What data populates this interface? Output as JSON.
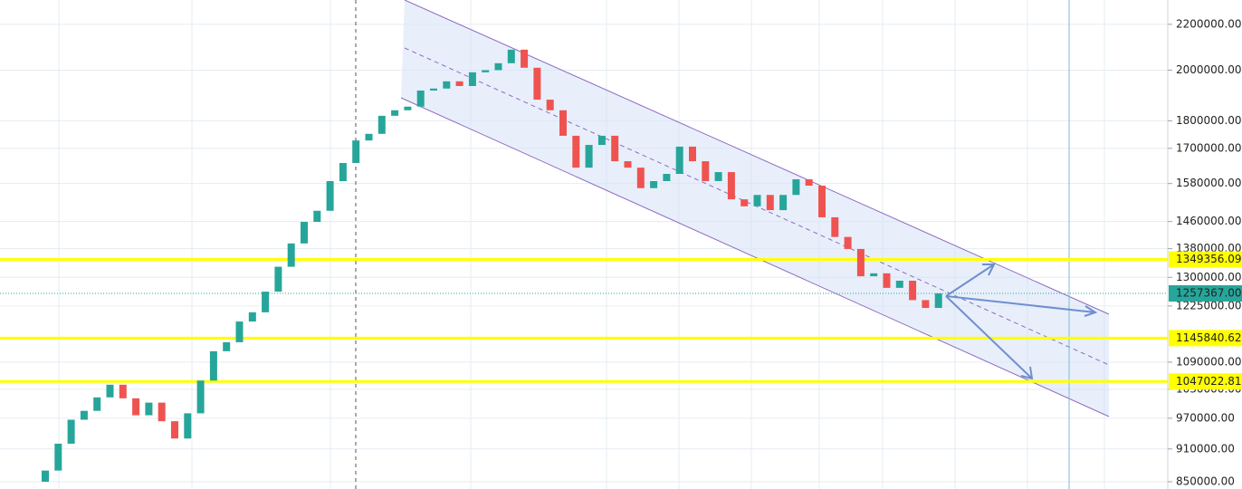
{
  "chart_data": {
    "type": "candlestick",
    "log_scale": true,
    "grid": true,
    "ylim": [
      837300,
      2314000
    ],
    "yticks": [
      {
        "value": 2200000,
        "label": "2200000.00"
      },
      {
        "value": 2000000,
        "label": "2000000.00"
      },
      {
        "value": 1800000,
        "label": "1800000.00"
      },
      {
        "value": 1700000,
        "label": "1700000.00"
      },
      {
        "value": 1580000,
        "label": "1580000.00"
      },
      {
        "value": 1460000,
        "label": "1460000.00"
      },
      {
        "value": 1380000,
        "label": "1380000.00"
      },
      {
        "value": 1300000,
        "label": "1300000.00"
      },
      {
        "value": 1225000,
        "label": "1225000.00"
      },
      {
        "value": 1090000,
        "label": "1090000.00"
      },
      {
        "value": 1030000,
        "label": "1030000.00"
      },
      {
        "value": 970000,
        "label": "970000.00"
      },
      {
        "value": 910000,
        "label": "910000.00"
      },
      {
        "value": 850000,
        "label": "850000.00"
      }
    ],
    "up_color": "#26a69a",
    "down_color": "#ef5350",
    "open": [
      850000,
      870000,
      920000,
      967000,
      985000,
      1013000,
      1040000,
      1011000,
      976000,
      1002000,
      964000,
      930000,
      980000,
      1049000,
      1115000,
      1136000,
      1186000,
      1209000,
      1262000,
      1329000,
      1395000,
      1459000,
      1493000,
      1588000,
      1649000,
      1728000,
      1752000,
      1819000,
      1840000,
      1854000,
      1917000,
      1925000,
      1954000,
      1935000,
      1991000,
      2000000,
      2029000,
      2087000,
      2010000,
      1881000,
      1840000,
      1745000,
      1633000,
      1712000,
      1745000,
      1655000,
      1633000,
      1565000,
      1588000,
      1612000,
      1706000,
      1655000,
      1588000,
      1618000,
      1529000,
      1507000,
      1543000,
      1495000,
      1543000,
      1594000,
      1573000,
      1473000,
      1414000,
      1379000,
      1303000,
      1311000,
      1272000,
      1291000,
      1240000,
      1220000
    ],
    "close": [
      870000,
      920000,
      967000,
      985000,
      1013000,
      1040000,
      1011000,
      976000,
      1002000,
      964000,
      930000,
      980000,
      1049000,
      1115000,
      1136000,
      1186000,
      1209000,
      1262000,
      1329000,
      1395000,
      1459000,
      1493000,
      1588000,
      1649000,
      1728000,
      1752000,
      1819000,
      1840000,
      1854000,
      1917000,
      1925000,
      1954000,
      1935000,
      1991000,
      2000000,
      2029000,
      2087000,
      2010000,
      1881000,
      1840000,
      1745000,
      1633000,
      1712000,
      1745000,
      1655000,
      1633000,
      1565000,
      1588000,
      1612000,
      1706000,
      1655000,
      1588000,
      1618000,
      1529000,
      1507000,
      1543000,
      1495000,
      1543000,
      1594000,
      1573000,
      1473000,
      1414000,
      1379000,
      1303000,
      1311000,
      1272000,
      1291000,
      1240000,
      1220000,
      1257367
    ],
    "levels": [
      {
        "value": 1349356.09,
        "label": "1349356.09",
        "color": "#ffff00"
      },
      {
        "value": 1145840.62,
        "label": "1145840.62",
        "color": "#ffff00"
      },
      {
        "value": 1047022.81,
        "label": "1047022.81",
        "color": "#ffff00"
      }
    ],
    "last_price": {
      "value": 1257367,
      "label": "1257367.00",
      "color": "#26a69a"
    }
  }
}
